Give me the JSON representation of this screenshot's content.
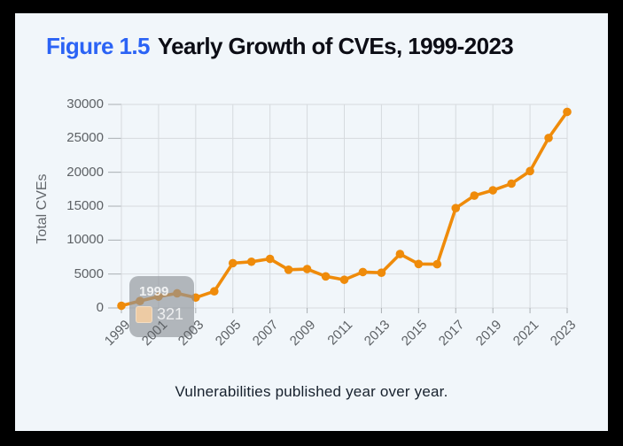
{
  "frame": {
    "border_color": "#000000",
    "panel_bg": "#f1f6fa"
  },
  "header": {
    "figure_label": "Figure 1.5",
    "title_rest": "Yearly Growth of CVEs, 1999-2023",
    "figure_label_color": "#2b63f5",
    "title_color": "#0c0d15"
  },
  "caption": "Vulnerabilities published year over year.",
  "tooltip": {
    "title": "1999",
    "value": "321",
    "swatch_color": "#edcba4",
    "bg_color": "rgba(143,147,154,0.65)"
  },
  "chart_data": {
    "type": "line",
    "title": "Yearly Growth of CVEs, 1999-2023",
    "xlabel": "",
    "ylabel": "Total CVEs",
    "x": [
      1999,
      2000,
      2001,
      2002,
      2003,
      2004,
      2005,
      2006,
      2007,
      2008,
      2009,
      2010,
      2011,
      2012,
      2013,
      2014,
      2015,
      2016,
      2017,
      2018,
      2019,
      2020,
      2021,
      2022,
      2023
    ],
    "series": [
      {
        "name": "Total CVEs",
        "color": "#ef8b0a",
        "values": [
          321,
          1020,
          1677,
          2156,
          1527,
          2451,
          6604,
          6810,
          7236,
          5632,
          5736,
          4653,
          4155,
          5297,
          5191,
          7946,
          6480,
          6447,
          14714,
          16557,
          17344,
          18325,
          20171,
          25059,
          28902
        ]
      }
    ],
    "x_tick_labels": [
      "1999",
      "2001",
      "2003",
      "2005",
      "2007",
      "2009",
      "2011",
      "2013",
      "2015",
      "2017",
      "2019",
      "2021",
      "2023"
    ],
    "y_tick_labels": [
      "0",
      "5000",
      "10000",
      "15000",
      "20000",
      "25000",
      "30000"
    ],
    "ylim": [
      0,
      30000
    ],
    "grid": true,
    "legend": false,
    "grid_color": "#d6dade",
    "tick_color": "#a9aeb3",
    "tick_label_color": "#5d6165"
  }
}
